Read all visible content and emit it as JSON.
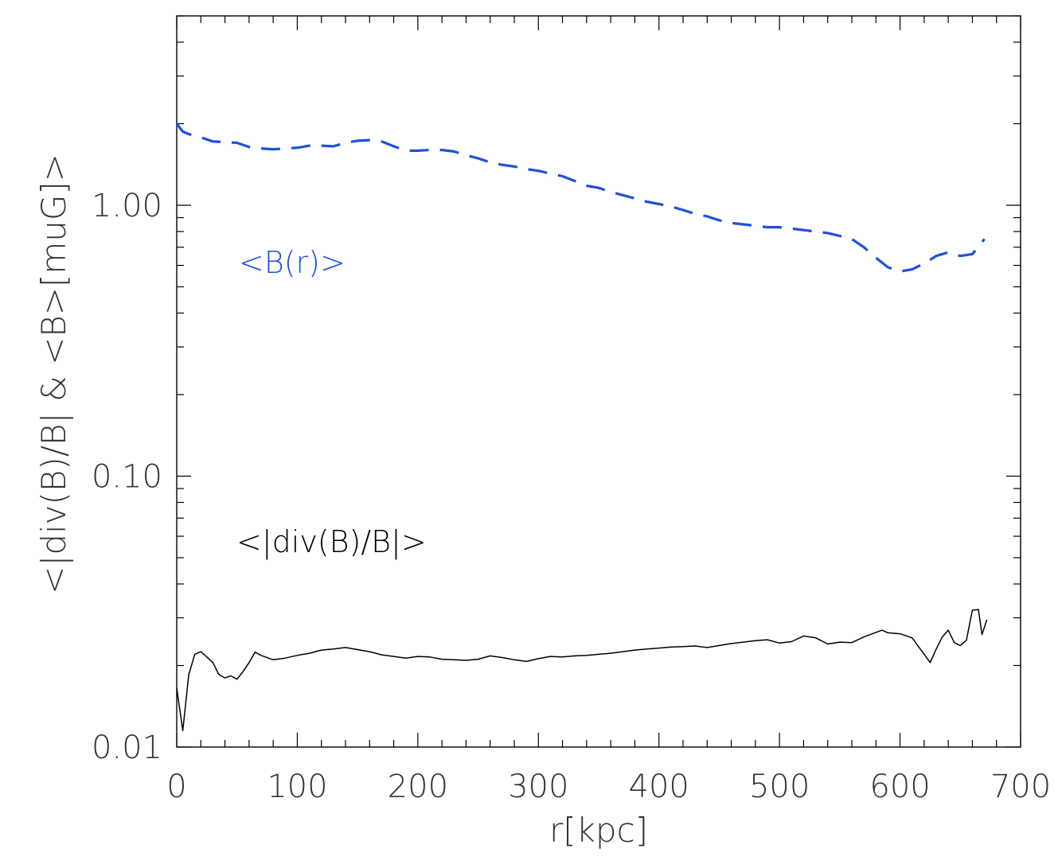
{
  "chart_data": {
    "type": "line",
    "xlabel": "r[kpc]",
    "ylabel": "<|div(B)/B| & <B>[muG]>",
    "xlim": [
      0,
      700
    ],
    "ylim": [
      0.01,
      5.0
    ],
    "yscale": "log",
    "x_ticks": [
      {
        "value": 0,
        "label": "0"
      },
      {
        "value": 100,
        "label": "100"
      },
      {
        "value": 200,
        "label": "200"
      },
      {
        "value": 300,
        "label": "300"
      },
      {
        "value": 400,
        "label": "400"
      },
      {
        "value": 500,
        "label": "500"
      },
      {
        "value": 600,
        "label": "600"
      },
      {
        "value": 700,
        "label": "700"
      }
    ],
    "y_ticks": [
      {
        "value": 0.01,
        "label": "0.01"
      },
      {
        "value": 0.1,
        "label": "0.10"
      },
      {
        "value": 1.0,
        "label": "1.00"
      }
    ],
    "annotations": [
      {
        "text": "<B(r)>",
        "color": "#1f4fe0",
        "series": "B"
      },
      {
        "text": "<|div(B)/B|>",
        "color": "#000000",
        "series": "divB"
      }
    ],
    "series": [
      {
        "key": "B",
        "color": "#1f4fe0",
        "style": "dashed",
        "x": [
          0,
          5,
          10,
          20,
          30,
          40,
          50,
          60,
          70,
          80,
          90,
          100,
          110,
          120,
          130,
          140,
          150,
          160,
          170,
          180,
          190,
          200,
          210,
          220,
          230,
          240,
          250,
          260,
          270,
          280,
          290,
          300,
          310,
          320,
          330,
          340,
          350,
          360,
          370,
          380,
          390,
          400,
          410,
          420,
          430,
          440,
          450,
          460,
          470,
          480,
          490,
          500,
          510,
          520,
          530,
          540,
          550,
          560,
          570,
          580,
          590,
          600,
          610,
          620,
          630,
          640,
          650,
          660,
          670
        ],
        "y": [
          2.0,
          1.87,
          1.83,
          1.78,
          1.72,
          1.71,
          1.7,
          1.64,
          1.62,
          1.61,
          1.62,
          1.63,
          1.66,
          1.66,
          1.65,
          1.7,
          1.73,
          1.74,
          1.72,
          1.65,
          1.59,
          1.59,
          1.6,
          1.6,
          1.58,
          1.53,
          1.49,
          1.44,
          1.41,
          1.39,
          1.36,
          1.34,
          1.31,
          1.28,
          1.23,
          1.18,
          1.16,
          1.12,
          1.09,
          1.06,
          1.03,
          1.01,
          0.99,
          0.96,
          0.93,
          0.91,
          0.88,
          0.86,
          0.85,
          0.84,
          0.83,
          0.83,
          0.82,
          0.81,
          0.8,
          0.79,
          0.77,
          0.75,
          0.7,
          0.64,
          0.59,
          0.57,
          0.58,
          0.61,
          0.65,
          0.67,
          0.65,
          0.66,
          0.75
        ]
      },
      {
        "key": "divB",
        "color": "#000000",
        "style": "solid",
        "x": [
          0,
          5,
          10,
          15,
          20,
          25,
          30,
          35,
          40,
          45,
          50,
          55,
          60,
          65,
          70,
          80,
          90,
          100,
          110,
          120,
          130,
          140,
          150,
          160,
          170,
          180,
          190,
          200,
          210,
          220,
          230,
          240,
          250,
          260,
          270,
          280,
          290,
          300,
          310,
          320,
          330,
          340,
          350,
          360,
          370,
          380,
          390,
          400,
          410,
          420,
          430,
          440,
          450,
          460,
          470,
          480,
          490,
          500,
          510,
          520,
          530,
          540,
          550,
          560,
          570,
          580,
          585,
          590,
          600,
          610,
          620,
          625,
          630,
          635,
          640,
          645,
          650,
          655,
          660,
          665,
          668,
          672
        ],
        "y": [
          0.0165,
          0.0115,
          0.0185,
          0.022,
          0.0225,
          0.0215,
          0.0205,
          0.0185,
          0.018,
          0.0183,
          0.0178,
          0.019,
          0.0205,
          0.0224,
          0.0218,
          0.021,
          0.0213,
          0.0218,
          0.0222,
          0.0228,
          0.023,
          0.0233,
          0.0229,
          0.0225,
          0.0219,
          0.0216,
          0.0213,
          0.0216,
          0.0215,
          0.0211,
          0.021,
          0.0209,
          0.0211,
          0.0217,
          0.0214,
          0.021,
          0.0207,
          0.0212,
          0.0216,
          0.0215,
          0.0217,
          0.0218,
          0.022,
          0.0222,
          0.0225,
          0.0228,
          0.023,
          0.0232,
          0.0234,
          0.0235,
          0.0236,
          0.0233,
          0.0237,
          0.0241,
          0.0244,
          0.0247,
          0.0249,
          0.0242,
          0.0245,
          0.0257,
          0.0253,
          0.024,
          0.0244,
          0.0243,
          0.0255,
          0.0265,
          0.027,
          0.0264,
          0.0262,
          0.0253,
          0.022,
          0.0205,
          0.023,
          0.0255,
          0.027,
          0.0243,
          0.0237,
          0.0248,
          0.032,
          0.0322,
          0.026,
          0.0295
        ]
      }
    ]
  }
}
